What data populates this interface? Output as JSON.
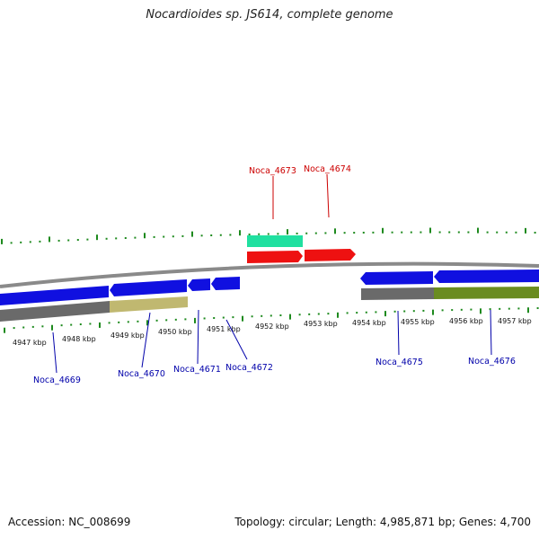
{
  "title": "Nocardioides sp. JS614, complete genome",
  "footer": {
    "accession": "Accession: NC_008699",
    "stats": "Topology: circular; Length: 4,985,871 bp; Genes: 4,700"
  },
  "colors": {
    "tick": "#1e8a1e",
    "cds_blue": "#1010e0",
    "red": "#ee1111",
    "rrna_green": "#20e0a0",
    "track_tan": "#c0b870",
    "track_olive": "#6a8c20",
    "track_gray": "#6a6a6a",
    "backbone": "#8a8a8a",
    "label_blue": "#0000aa",
    "label_red": "#cc0000"
  },
  "scale": {
    "labels": [
      "4947 kbp",
      "4948 kbp",
      "4949 kbp",
      "4950 kbp",
      "4951 kbp",
      "4952 kbp",
      "4953 kbp",
      "4954 kbp",
      "4955 kbp",
      "4956 kbp",
      "4957 kbp"
    ]
  },
  "genes": [
    {
      "name": "Noca_4669",
      "color": "label_blue"
    },
    {
      "name": "Noca_4670",
      "color": "label_blue"
    },
    {
      "name": "Noca_4671",
      "color": "label_blue"
    },
    {
      "name": "Noca_4672",
      "color": "label_blue"
    },
    {
      "name": "Noca_4673",
      "color": "label_red"
    },
    {
      "name": "Noca_4674",
      "color": "label_red"
    },
    {
      "name": "Noca_4675",
      "color": "label_blue"
    },
    {
      "name": "Noca_4676",
      "color": "label_blue"
    }
  ]
}
